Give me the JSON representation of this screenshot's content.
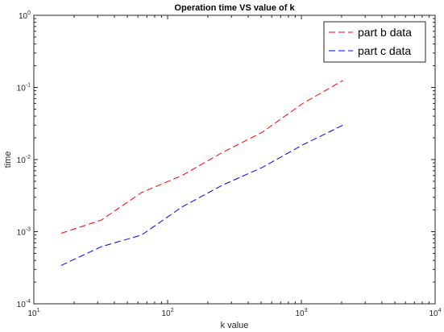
{
  "chart_data": {
    "type": "line",
    "title": "Operation time VS value of k",
    "xlabel": "k value",
    "ylabel": "time",
    "x_scale": "log",
    "y_scale": "log",
    "xlim": [
      10,
      10000
    ],
    "ylim": [
      0.0001,
      1
    ],
    "x_ticks": [
      {
        "base": "10",
        "exp": "1",
        "value": 10
      },
      {
        "base": "10",
        "exp": "2",
        "value": 100
      },
      {
        "base": "10",
        "exp": "3",
        "value": 1000
      },
      {
        "base": "10",
        "exp": "4",
        "value": 10000
      }
    ],
    "y_ticks": [
      {
        "base": "10",
        "exp": "-4",
        "value": 0.0001
      },
      {
        "base": "10",
        "exp": "-3",
        "value": 0.001
      },
      {
        "base": "10",
        "exp": "-2",
        "value": 0.01
      },
      {
        "base": "10",
        "exp": "-1",
        "value": 0.1
      },
      {
        "base": "10",
        "exp": "0",
        "value": 1
      }
    ],
    "grid": false,
    "legend_position": "top-right",
    "series": [
      {
        "name": "part b data",
        "color": "#ff0000",
        "line_style": "dashed",
        "x": [
          16,
          32,
          64,
          128,
          256,
          512,
          1024,
          2048
        ],
        "y": [
          0.00095,
          0.00145,
          0.0035,
          0.006,
          0.0125,
          0.024,
          0.06,
          0.125
        ]
      },
      {
        "name": "part c data",
        "color": "#0000ff",
        "line_style": "dashed",
        "x": [
          16,
          32,
          64,
          128,
          256,
          512,
          1024,
          2048
        ],
        "y": [
          0.00034,
          0.00062,
          0.0009,
          0.0022,
          0.0044,
          0.0078,
          0.016,
          0.03
        ]
      }
    ]
  }
}
